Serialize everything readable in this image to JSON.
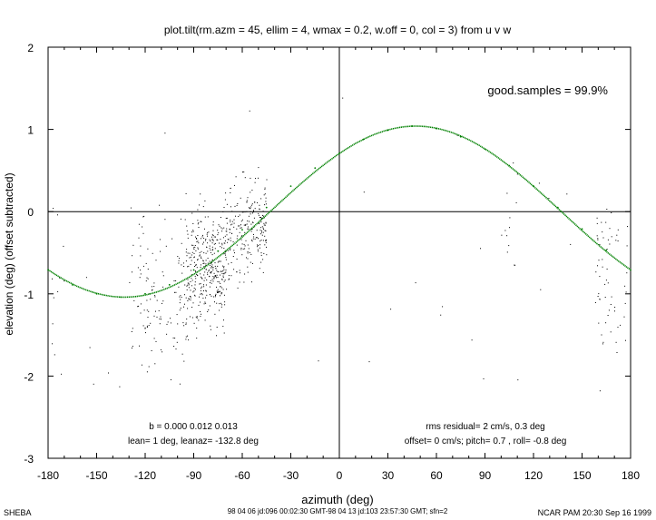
{
  "chart_data": {
    "type": "scatter",
    "title": "plot.tilt(rm.azm = 45, ellim = 4, wmax = 0.2, w.off = 0, col = 3) from u v w",
    "xlabel": "azimuth (deg)",
    "ylabel": "elevation (deg)  (offset subtracted)",
    "xlim": [
      -180,
      180
    ],
    "ylim": [
      -3,
      2
    ],
    "xticks": [
      -180,
      -150,
      -120,
      -90,
      -60,
      -30,
      0,
      30,
      60,
      90,
      120,
      150,
      180
    ],
    "yticks": [
      -3,
      -2,
      -1,
      0,
      1,
      2
    ],
    "zero_lines": true,
    "grid": false,
    "annotations": {
      "good_samples": "good.samples = 99.9%",
      "b": "b = 0.000 0.012 0.013",
      "lean": "lean= 1 deg, leanaz= -132.8 deg",
      "rms": "rms residual= 2 cm/s, 0.3 deg",
      "offset": "offset= 0 cm/s; pitch=  0.7 , roll= -0.8 deg"
    },
    "series": [
      {
        "type": "line",
        "color": "#008000",
        "amplitude_deg": 1.04,
        "peak_azimuth_deg": 47.2,
        "x": [
          -180,
          -165,
          -150,
          -135,
          -120,
          -105,
          -90,
          -75,
          -60,
          -45,
          -30,
          -15,
          0,
          15,
          30,
          45,
          60,
          75,
          90,
          105,
          120,
          135,
          150,
          165,
          180
        ],
        "y": [
          -0.71,
          -0.89,
          -1.0,
          -1.04,
          -1.0,
          -0.89,
          -0.71,
          -0.48,
          -0.22,
          0.05,
          0.31,
          0.53,
          0.71,
          0.88,
          0.99,
          1.04,
          1.01,
          0.91,
          0.76,
          0.56,
          0.31,
          0.05,
          -0.21,
          -0.47,
          -0.71
        ]
      },
      {
        "type": "scatter",
        "color": "#000000",
        "clusters": [
          {
            "x_range": [
              -95,
              -70
            ],
            "y_center": -0.7,
            "y_spread": 0.35,
            "count": 380
          },
          {
            "x_range": [
              -70,
              -45
            ],
            "y_center": -0.2,
            "y_spread": 0.3,
            "count": 230
          },
          {
            "x_range": [
              -130,
              -95
            ],
            "y_center": -1.1,
            "y_spread": 0.45,
            "count": 130
          },
          {
            "x_range": [
              158,
              178
            ],
            "y_center": -1.2,
            "y_spread": 0.45,
            "count": 60
          },
          {
            "x_range": [
              100,
              112
            ],
            "y_center": -1.1,
            "y_spread": 0.35,
            "count": 12
          },
          {
            "x_range": [
              -180,
              -170
            ],
            "y_center": -1.2,
            "y_spread": 0.5,
            "count": 10
          }
        ]
      }
    ]
  },
  "footer": {
    "left": "SHEBA",
    "center": "98 04 06 jd:096 00:02:30 GMT-98 04 13 jd:103 23:57:30 GMT; sfn=2",
    "right": "NCAR PAM 20:30 Sep 16 1999"
  }
}
